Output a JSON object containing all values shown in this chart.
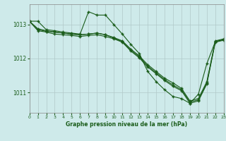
{
  "title": "Graphe pression niveau de la mer (hPa)",
  "background_color": "#ceeaea",
  "line_color": "#1a5c1a",
  "grid_color": "#b0c8c8",
  "xlim": [
    0,
    23
  ],
  "ylim": [
    1010.4,
    1013.6
  ],
  "yticks": [
    1011,
    1012,
    1013
  ],
  "xticks": [
    0,
    1,
    2,
    3,
    4,
    5,
    6,
    7,
    8,
    9,
    10,
    11,
    12,
    13,
    14,
    15,
    16,
    17,
    18,
    19,
    20,
    21,
    22,
    23
  ],
  "series": [
    {
      "x": [
        0,
        1,
        2,
        3,
        4,
        5,
        6,
        7,
        8,
        9,
        10,
        11,
        12,
        13,
        14,
        15,
        16,
        17,
        18,
        19,
        20,
        21,
        22,
        23
      ],
      "y": [
        1013.1,
        1013.1,
        1012.85,
        1012.82,
        1012.78,
        1012.75,
        1012.72,
        1013.38,
        1013.28,
        1013.28,
        1013.0,
        1012.72,
        1012.42,
        1012.15,
        1011.62,
        1011.32,
        1011.08,
        1010.88,
        1010.82,
        1010.68,
        1010.95,
        1011.85,
        1012.5,
        1012.55
      ]
    },
    {
      "x": [
        0,
        1,
        2,
        3,
        4,
        5,
        6,
        7,
        8,
        9,
        10,
        11,
        12,
        13,
        14,
        15,
        16,
        17,
        18,
        19,
        20,
        21,
        22,
        23
      ],
      "y": [
        1013.1,
        1012.88,
        1012.82,
        1012.78,
        1012.75,
        1012.72,
        1012.7,
        1012.72,
        1012.75,
        1012.7,
        1012.62,
        1012.52,
        1012.28,
        1012.08,
        1011.82,
        1011.62,
        1011.42,
        1011.28,
        1011.12,
        1010.75,
        1010.82,
        1011.32,
        1012.52,
        1012.58
      ]
    },
    {
      "x": [
        0,
        1,
        2,
        3,
        4,
        5,
        6,
        7,
        8,
        9,
        10,
        11,
        12,
        13,
        14,
        15,
        16,
        17,
        18,
        19,
        20,
        21,
        22,
        23
      ],
      "y": [
        1013.1,
        1012.82,
        1012.78,
        1012.72,
        1012.7,
        1012.68,
        1012.65,
        1012.68,
        1012.7,
        1012.65,
        1012.58,
        1012.48,
        1012.22,
        1012.02,
        1011.75,
        1011.55,
        1011.35,
        1011.18,
        1011.05,
        1010.68,
        1010.75,
        1011.25,
        1012.48,
        1012.54
      ]
    },
    {
      "x": [
        0,
        1,
        2,
        3,
        4,
        5,
        6,
        7,
        8,
        9,
        10,
        11,
        12,
        13,
        14,
        15,
        16,
        17,
        18,
        19,
        20,
        21,
        22,
        23
      ],
      "y": [
        1013.1,
        1012.85,
        1012.8,
        1012.78,
        1012.75,
        1012.72,
        1012.7,
        1012.72,
        1012.75,
        1012.7,
        1012.6,
        1012.5,
        1012.25,
        1012.05,
        1011.78,
        1011.58,
        1011.38,
        1011.22,
        1011.08,
        1010.72,
        1010.78,
        1011.28,
        1012.5,
        1012.56
      ]
    }
  ]
}
